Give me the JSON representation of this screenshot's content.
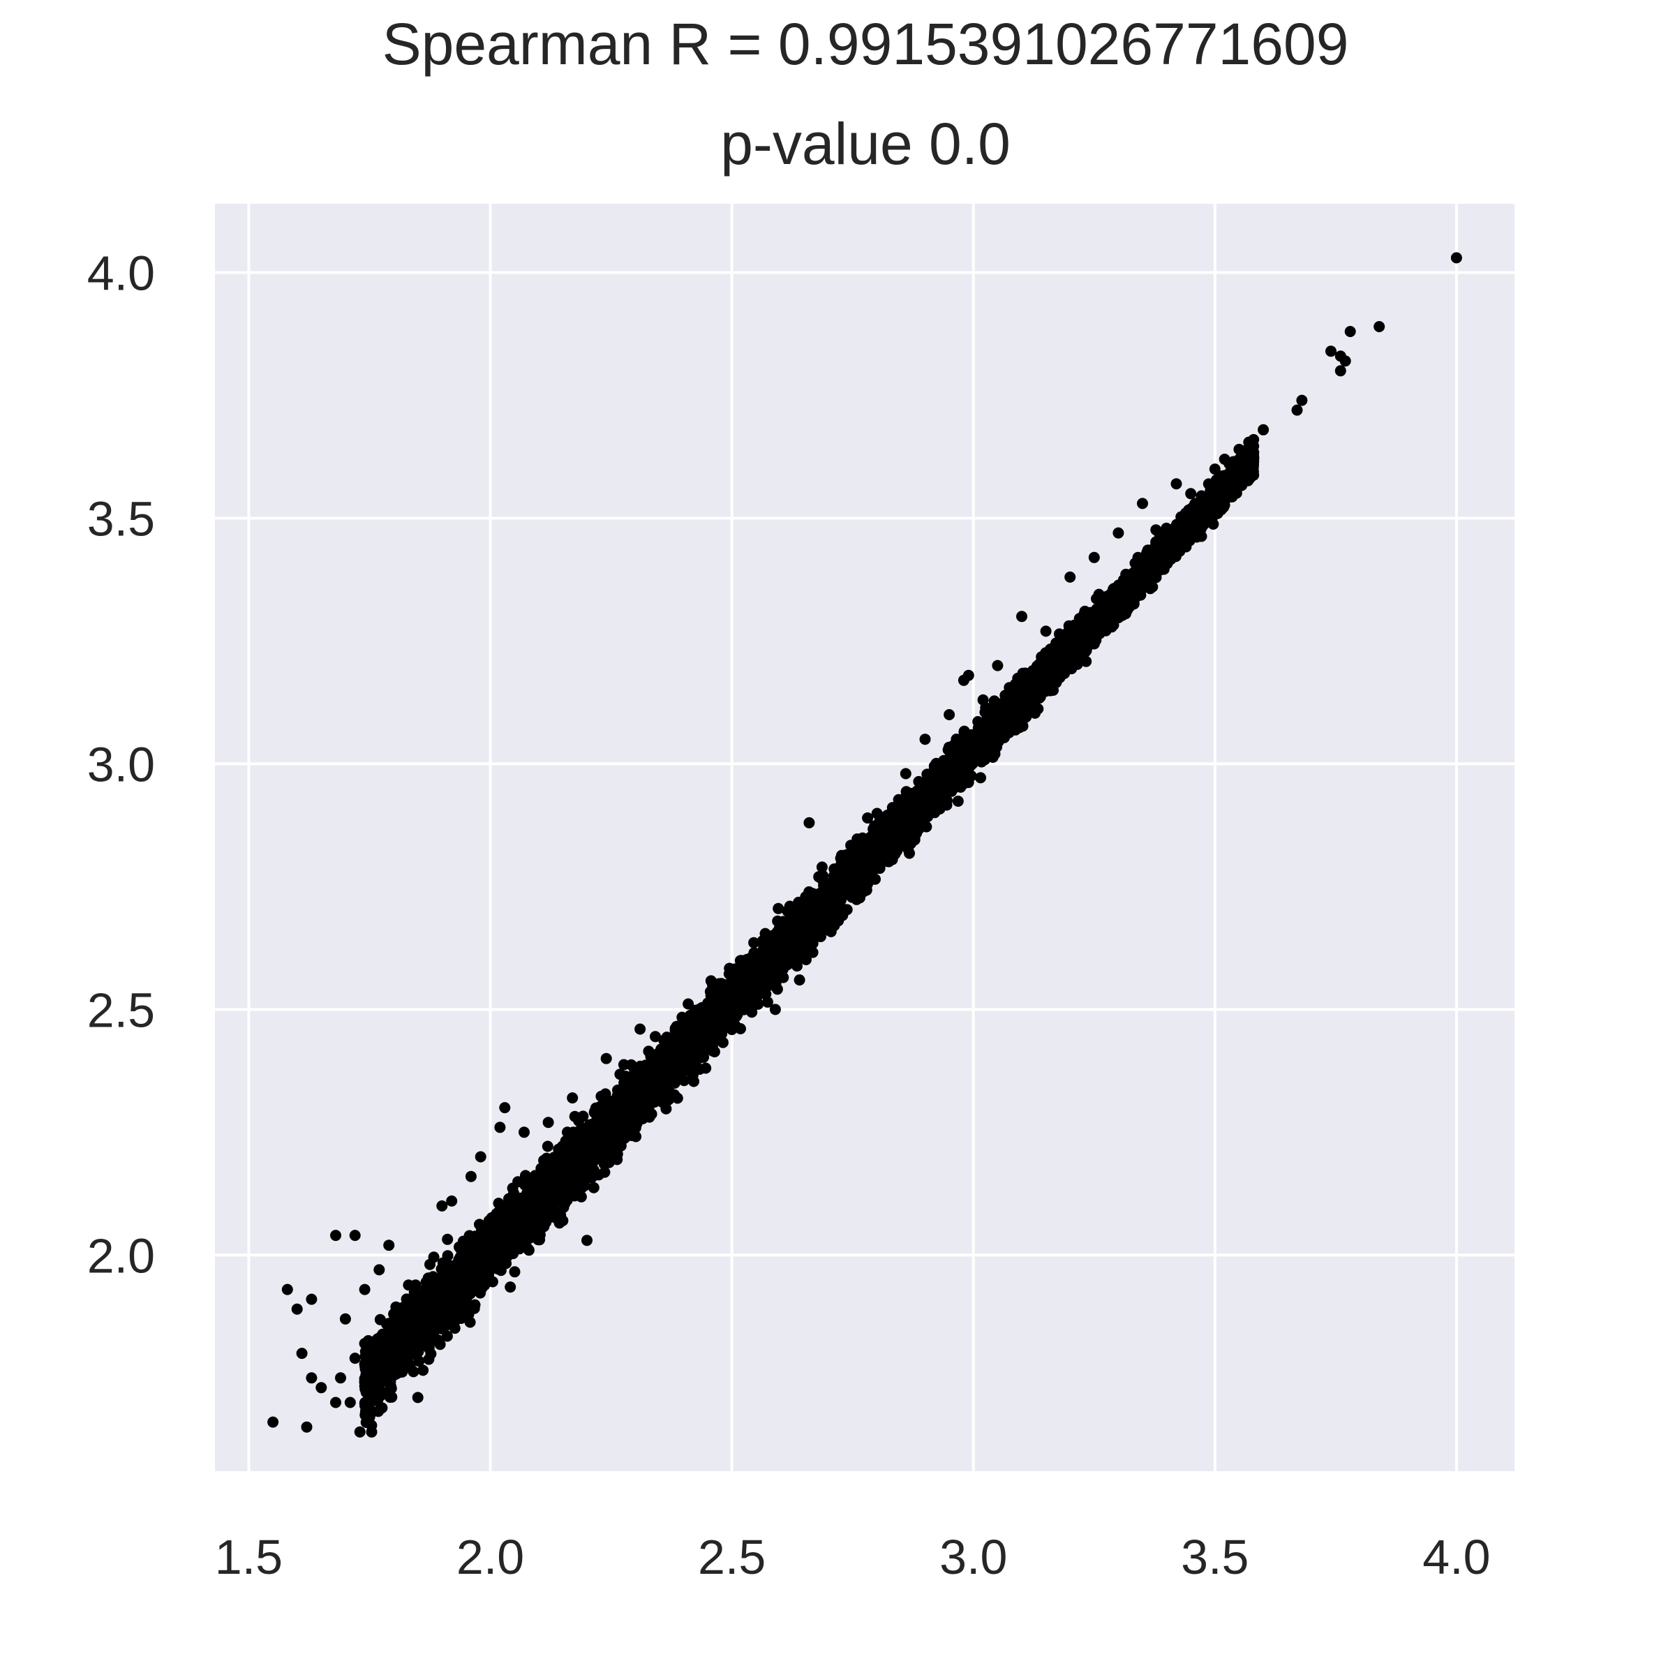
{
  "chart_data": {
    "type": "scatter",
    "title": "Spearman R = 0.9915391026771609",
    "subtitle": "p-value 0.0",
    "xlabel": "",
    "ylabel": "",
    "xlim": [
      1.43,
      4.12
    ],
    "ylim": [
      1.56,
      4.14
    ],
    "x_ticks": [
      1.5,
      2.0,
      2.5,
      3.0,
      3.5,
      4.0
    ],
    "x_tick_labels": [
      "1.5",
      "2.0",
      "2.5",
      "3.0",
      "3.5",
      "4.0"
    ],
    "y_ticks": [
      2.0,
      2.5,
      3.0,
      3.5,
      4.0
    ],
    "y_tick_labels": [
      "2.0",
      "2.5",
      "3.0",
      "3.5",
      "4.0"
    ],
    "grid": true,
    "legend": "none",
    "colors": {
      "background": "#eaeaf2",
      "grid": "#ffffff",
      "points": "#000000",
      "text": "#262626"
    },
    "series": [
      {
        "points": [
          [
            1.55,
            1.66
          ],
          [
            1.62,
            1.65
          ],
          [
            1.73,
            1.64
          ],
          [
            1.58,
            1.93
          ],
          [
            1.63,
            1.91
          ],
          [
            1.6,
            1.89
          ],
          [
            1.61,
            1.8
          ],
          [
            1.63,
            1.75
          ],
          [
            1.65,
            1.73
          ],
          [
            1.69,
            1.75
          ],
          [
            1.68,
            1.7
          ],
          [
            1.71,
            1.7
          ],
          [
            1.72,
            1.79
          ],
          [
            1.68,
            2.04
          ],
          [
            1.72,
            2.04
          ],
          [
            1.7,
            1.87
          ],
          [
            1.74,
            1.82
          ],
          [
            1.78,
            1.76
          ],
          [
            1.79,
            1.75
          ],
          [
            1.8,
            1.85
          ],
          [
            1.81,
            1.84
          ],
          [
            1.85,
            1.71
          ],
          [
            1.82,
            1.78
          ],
          [
            1.77,
            1.97
          ],
          [
            1.79,
            2.02
          ],
          [
            1.74,
            1.93
          ],
          [
            1.8,
            1.88
          ],
          [
            1.84,
            1.83
          ],
          [
            1.86,
            1.87
          ],
          [
            1.88,
            1.89
          ],
          [
            1.9,
            1.85
          ],
          [
            1.9,
            2.1
          ],
          [
            1.92,
            2.11
          ],
          [
            1.96,
            2.16
          ],
          [
            1.98,
            2.2
          ],
          [
            2.03,
            2.3
          ],
          [
            2.02,
            2.26
          ],
          [
            2.07,
            2.25
          ],
          [
            1.95,
            1.88
          ],
          [
            2.05,
            2.04
          ],
          [
            2.08,
            2.01
          ],
          [
            2.15,
            2.07
          ],
          [
            2.2,
            2.03
          ],
          [
            2.18,
            2.15
          ],
          [
            2.12,
            2.27
          ],
          [
            2.17,
            2.32
          ],
          [
            2.24,
            2.4
          ],
          [
            2.27,
            2.32
          ],
          [
            2.31,
            2.46
          ],
          [
            2.38,
            2.37
          ],
          [
            2.44,
            2.41
          ],
          [
            2.46,
            2.55
          ],
          [
            2.52,
            2.58
          ],
          [
            2.59,
            2.63
          ],
          [
            2.62,
            2.71
          ],
          [
            2.68,
            2.77
          ],
          [
            2.59,
            2.5
          ],
          [
            2.64,
            2.56
          ],
          [
            2.66,
            2.88
          ],
          [
            2.7,
            2.7
          ],
          [
            2.75,
            2.82
          ],
          [
            2.8,
            2.86
          ],
          [
            2.83,
            2.85
          ],
          [
            2.86,
            2.98
          ],
          [
            2.9,
            3.05
          ],
          [
            2.91,
            2.91
          ],
          [
            2.95,
            3.1
          ],
          [
            2.98,
            3.17
          ],
          [
            3.02,
            3.13
          ],
          [
            3.05,
            3.2
          ],
          [
            2.99,
            3.18
          ],
          [
            3.1,
            3.3
          ],
          [
            3.15,
            3.27
          ],
          [
            3.2,
            3.38
          ],
          [
            3.25,
            3.42
          ],
          [
            3.3,
            3.47
          ],
          [
            3.35,
            3.53
          ],
          [
            3.42,
            3.57
          ],
          [
            3.4,
            3.47
          ],
          [
            3.45,
            3.55
          ],
          [
            3.5,
            3.6
          ],
          [
            3.52,
            3.62
          ],
          [
            3.55,
            3.64
          ],
          [
            3.58,
            3.66
          ],
          [
            3.6,
            3.68
          ],
          [
            3.68,
            3.74
          ],
          [
            3.67,
            3.72
          ],
          [
            3.74,
            3.84
          ],
          [
            3.76,
            3.83
          ],
          [
            3.77,
            3.82
          ],
          [
            3.76,
            3.8
          ],
          [
            3.78,
            3.88
          ],
          [
            3.84,
            3.89
          ],
          [
            4.0,
            4.03
          ]
        ],
        "cloud": {
          "count": 6000,
          "x_range": [
            1.74,
            3.58
          ],
          "slope": 1.02,
          "intercept": -0.03,
          "spread_sd": [
            0.078,
            0.028
          ]
        }
      }
    ]
  }
}
